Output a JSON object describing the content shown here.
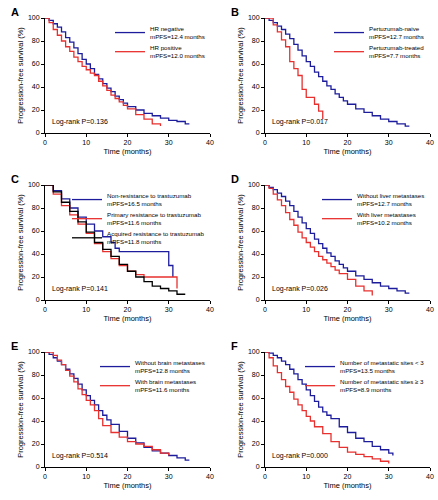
{
  "chart_data": [
    {
      "type": "line",
      "title": "A",
      "x_label": "Time (months)",
      "y_label": "Progression-free survival (%)",
      "xlim": [
        0,
        40
      ],
      "xticks": [
        0,
        10,
        20,
        30,
        40
      ],
      "ylim": [
        0,
        100
      ],
      "yticks": [
        0,
        20,
        40,
        60,
        80,
        100
      ],
      "grid": false,
      "legend": "upper right",
      "line_style": "step",
      "annotations": [
        "Log-rank P=0.136"
      ],
      "series": [
        {
          "name": "HR negative\nmPFS=12.4 months",
          "color": "#1c1c9c",
          "x": [
            0,
            1,
            2,
            3,
            4,
            5,
            6,
            7,
            8,
            9,
            10,
            11,
            12,
            13,
            14,
            15,
            16,
            17,
            18,
            19,
            20,
            22,
            24,
            26,
            28,
            30,
            32,
            34,
            35
          ],
          "values": [
            100,
            98,
            95,
            92,
            88,
            83,
            79,
            74,
            69,
            64,
            60,
            56,
            51,
            47,
            43,
            39,
            36,
            32,
            29,
            26,
            23,
            20,
            17,
            15,
            13,
            11,
            10,
            8,
            8
          ]
        },
        {
          "name": "HR positive\nmPFS=12.0 months",
          "color": "#e8312f",
          "x": [
            0,
            1,
            2,
            3,
            4,
            5,
            6,
            7,
            8,
            9,
            10,
            11,
            12,
            13,
            14,
            15,
            16,
            17,
            18,
            19,
            20,
            22,
            24,
            26,
            28
          ],
          "values": [
            100,
            96,
            90,
            85,
            80,
            75,
            71,
            66,
            62,
            58,
            55,
            52,
            50,
            45,
            41,
            37,
            33,
            30,
            27,
            24,
            21,
            16,
            12,
            8,
            6
          ]
        }
      ]
    },
    {
      "type": "line",
      "title": "B",
      "x_label": "Time (months)",
      "y_label": "Progression-free survival (%)",
      "xlim": [
        0,
        40
      ],
      "xticks": [
        0,
        10,
        20,
        30,
        40
      ],
      "ylim": [
        0,
        100
      ],
      "yticks": [
        0,
        20,
        40,
        60,
        80,
        100
      ],
      "grid": false,
      "legend": "upper right",
      "line_style": "step",
      "annotations": [
        "Log-rank P=0.017"
      ],
      "series": [
        {
          "name": "Pertuzumab-naive\nmPFS=12.7 months",
          "color": "#1c1c9c",
          "x": [
            0,
            1,
            2,
            3,
            4,
            5,
            6,
            7,
            8,
            9,
            10,
            11,
            12,
            13,
            14,
            15,
            16,
            17,
            18,
            19,
            20,
            22,
            24,
            26,
            28,
            30,
            32,
            34,
            35
          ],
          "values": [
            100,
            98,
            96,
            93,
            90,
            86,
            82,
            77,
            72,
            67,
            62,
            58,
            53,
            49,
            45,
            41,
            38,
            34,
            31,
            28,
            25,
            21,
            18,
            15,
            12,
            10,
            8,
            6,
            6
          ]
        },
        {
          "name": "Pertuzumab-treated\nmPFS=7.7 months",
          "color": "#e8312f",
          "x": [
            0,
            2,
            3,
            4,
            5,
            6,
            7,
            8,
            9,
            10,
            12,
            13,
            14
          ],
          "values": [
            100,
            94,
            88,
            81,
            75,
            62,
            56,
            50,
            38,
            31,
            25,
            19,
            12
          ]
        }
      ]
    },
    {
      "type": "line",
      "title": "C",
      "x_label": "Time (months)",
      "y_label": "Progression-free survival (%)",
      "xlim": [
        0,
        40
      ],
      "xticks": [
        0,
        10,
        20,
        30,
        40
      ],
      "ylim": [
        0,
        100
      ],
      "yticks": [
        0,
        20,
        40,
        60,
        80,
        100
      ],
      "grid": false,
      "legend": "upper right",
      "line_style": "step",
      "annotations": [
        "Log-rank P=0.141"
      ],
      "series": [
        {
          "name": "Non-resistance to trastuzumab\nmPFS=16.5 months",
          "color": "#1c1c9c",
          "x": [
            0,
            2,
            4,
            6,
            8,
            10,
            12,
            14,
            16,
            17,
            18,
            20,
            22,
            24,
            28,
            30,
            31
          ],
          "values": [
            100,
            95,
            88,
            80,
            72,
            66,
            60,
            55,
            50,
            45,
            42,
            42,
            42,
            42,
            42,
            30,
            20
          ]
        },
        {
          "name": "Primary resistance to trastuzumab\nmPFS=11.6 months",
          "color": "#e8312f",
          "x": [
            0,
            2,
            4,
            6,
            8,
            10,
            12,
            14,
            16,
            18,
            20,
            22,
            24,
            26,
            28,
            30,
            32
          ],
          "values": [
            100,
            92,
            82,
            74,
            66,
            58,
            49,
            42,
            36,
            30,
            25,
            22,
            20,
            20,
            20,
            20,
            10
          ]
        },
        {
          "name": "Acquired resistance to trastuzumab\nmPFS=11.8 months",
          "color": "#000000",
          "x": [
            0,
            2,
            4,
            6,
            8,
            10,
            12,
            14,
            16,
            18,
            20,
            22,
            24,
            26,
            28,
            30,
            32,
            34
          ],
          "values": [
            100,
            94,
            85,
            77,
            68,
            59,
            50,
            44,
            38,
            31,
            25,
            20,
            16,
            12,
            10,
            8,
            5,
            5
          ]
        }
      ]
    },
    {
      "type": "line",
      "title": "D",
      "x_label": "Time (months)",
      "y_label": "Progression-free survival (%)",
      "xlim": [
        0,
        40
      ],
      "xticks": [
        0,
        10,
        20,
        30,
        40
      ],
      "ylim": [
        0,
        100
      ],
      "yticks": [
        0,
        20,
        40,
        60,
        80,
        100
      ],
      "grid": false,
      "legend": "upper right",
      "line_style": "step",
      "annotations": [
        "Log-rank P=0.026"
      ],
      "series": [
        {
          "name": "Without liver metastases\nmPFS=12.7 months",
          "color": "#1c1c9c",
          "x": [
            0,
            1,
            2,
            3,
            4,
            5,
            6,
            7,
            8,
            9,
            10,
            11,
            12,
            13,
            14,
            15,
            16,
            17,
            18,
            19,
            20,
            22,
            24,
            26,
            28,
            30,
            32,
            34,
            35
          ],
          "values": [
            100,
            98,
            96,
            93,
            90,
            86,
            82,
            77,
            72,
            67,
            62,
            58,
            53,
            49,
            45,
            41,
            38,
            34,
            31,
            28,
            25,
            21,
            18,
            15,
            12,
            10,
            8,
            6,
            6
          ]
        },
        {
          "name": "With liver metastases\nmPFS=10.2 months",
          "color": "#e8312f",
          "x": [
            0,
            1,
            2,
            3,
            4,
            5,
            6,
            7,
            8,
            9,
            10,
            11,
            12,
            13,
            14,
            15,
            16,
            17,
            18,
            20,
            22,
            24,
            26
          ],
          "values": [
            100,
            97,
            92,
            87,
            82,
            76,
            70,
            65,
            59,
            54,
            50,
            46,
            42,
            38,
            35,
            32,
            29,
            26,
            23,
            18,
            12,
            8,
            4
          ]
        }
      ]
    },
    {
      "type": "line",
      "title": "E",
      "x_label": "Time (months)",
      "y_label": "Progression-free survival (%)",
      "xlim": [
        0,
        40
      ],
      "xticks": [
        0,
        10,
        20,
        30,
        40
      ],
      "ylim": [
        0,
        100
      ],
      "yticks": [
        0,
        20,
        40,
        60,
        80,
        100
      ],
      "grid": false,
      "legend": "upper right",
      "line_style": "step",
      "annotations": [
        "Log-rank P=0.514"
      ],
      "series": [
        {
          "name": "Without brain metastases\nmPFS=12.8 months",
          "color": "#1c1c9c",
          "x": [
            0,
            1,
            2,
            3,
            4,
            5,
            6,
            7,
            8,
            9,
            10,
            11,
            12,
            13,
            14,
            15,
            16,
            18,
            20,
            22,
            24,
            26,
            28,
            30,
            32,
            34,
            35
          ],
          "values": [
            100,
            98,
            95,
            92,
            89,
            85,
            81,
            77,
            72,
            67,
            62,
            58,
            54,
            49,
            45,
            41,
            37,
            31,
            25,
            21,
            17,
            14,
            12,
            10,
            8,
            6,
            6
          ]
        },
        {
          "name": "With brain metastases\nmPFS=11.6 months",
          "color": "#e8312f",
          "x": [
            0,
            1,
            2,
            3,
            4,
            5,
            6,
            7,
            8,
            9,
            10,
            11,
            12,
            13,
            14,
            16,
            18,
            20,
            22,
            24,
            26,
            28,
            30
          ],
          "values": [
            100,
            100,
            97,
            93,
            89,
            84,
            79,
            74,
            68,
            63,
            58,
            54,
            49,
            42,
            36,
            30,
            26,
            22,
            20,
            18,
            15,
            12,
            10
          ]
        }
      ]
    },
    {
      "type": "line",
      "title": "F",
      "x_label": "Time (months)",
      "y_label": "Progression-free survival (%)",
      "xlim": [
        0,
        40
      ],
      "xticks": [
        0,
        10,
        20,
        30,
        40
      ],
      "ylim": [
        0,
        100
      ],
      "yticks": [
        0,
        20,
        40,
        60,
        80,
        100
      ],
      "grid": false,
      "legend": "upper right",
      "line_style": "step",
      "annotations": [
        "Log-rank P=0.000"
      ],
      "series": [
        {
          "name": "Number of metastatic sites < 3\nmPFS=13.5 months",
          "color": "#1c1c9c",
          "x": [
            0,
            1,
            2,
            3,
            4,
            5,
            6,
            7,
            8,
            9,
            10,
            11,
            12,
            13,
            14,
            15,
            16,
            18,
            20,
            22,
            24,
            26,
            28,
            30,
            31
          ],
          "values": [
            100,
            99,
            97,
            95,
            92,
            89,
            85,
            81,
            76,
            72,
            67,
            62,
            57,
            52,
            48,
            45,
            42,
            35,
            30,
            25,
            22,
            18,
            15,
            12,
            10
          ]
        },
        {
          "name": "Number of metastatic sites ≥ 3\nmPFS=8.9 months",
          "color": "#e8312f",
          "x": [
            0,
            1,
            2,
            3,
            4,
            5,
            6,
            7,
            8,
            9,
            10,
            11,
            12,
            14,
            16,
            18,
            20,
            22,
            24,
            26,
            28,
            30
          ],
          "values": [
            100,
            95,
            88,
            82,
            76,
            70,
            65,
            59,
            54,
            49,
            44,
            40,
            35,
            29,
            22,
            17,
            13,
            11,
            9,
            7,
            5,
            3
          ]
        }
      ]
    }
  ]
}
